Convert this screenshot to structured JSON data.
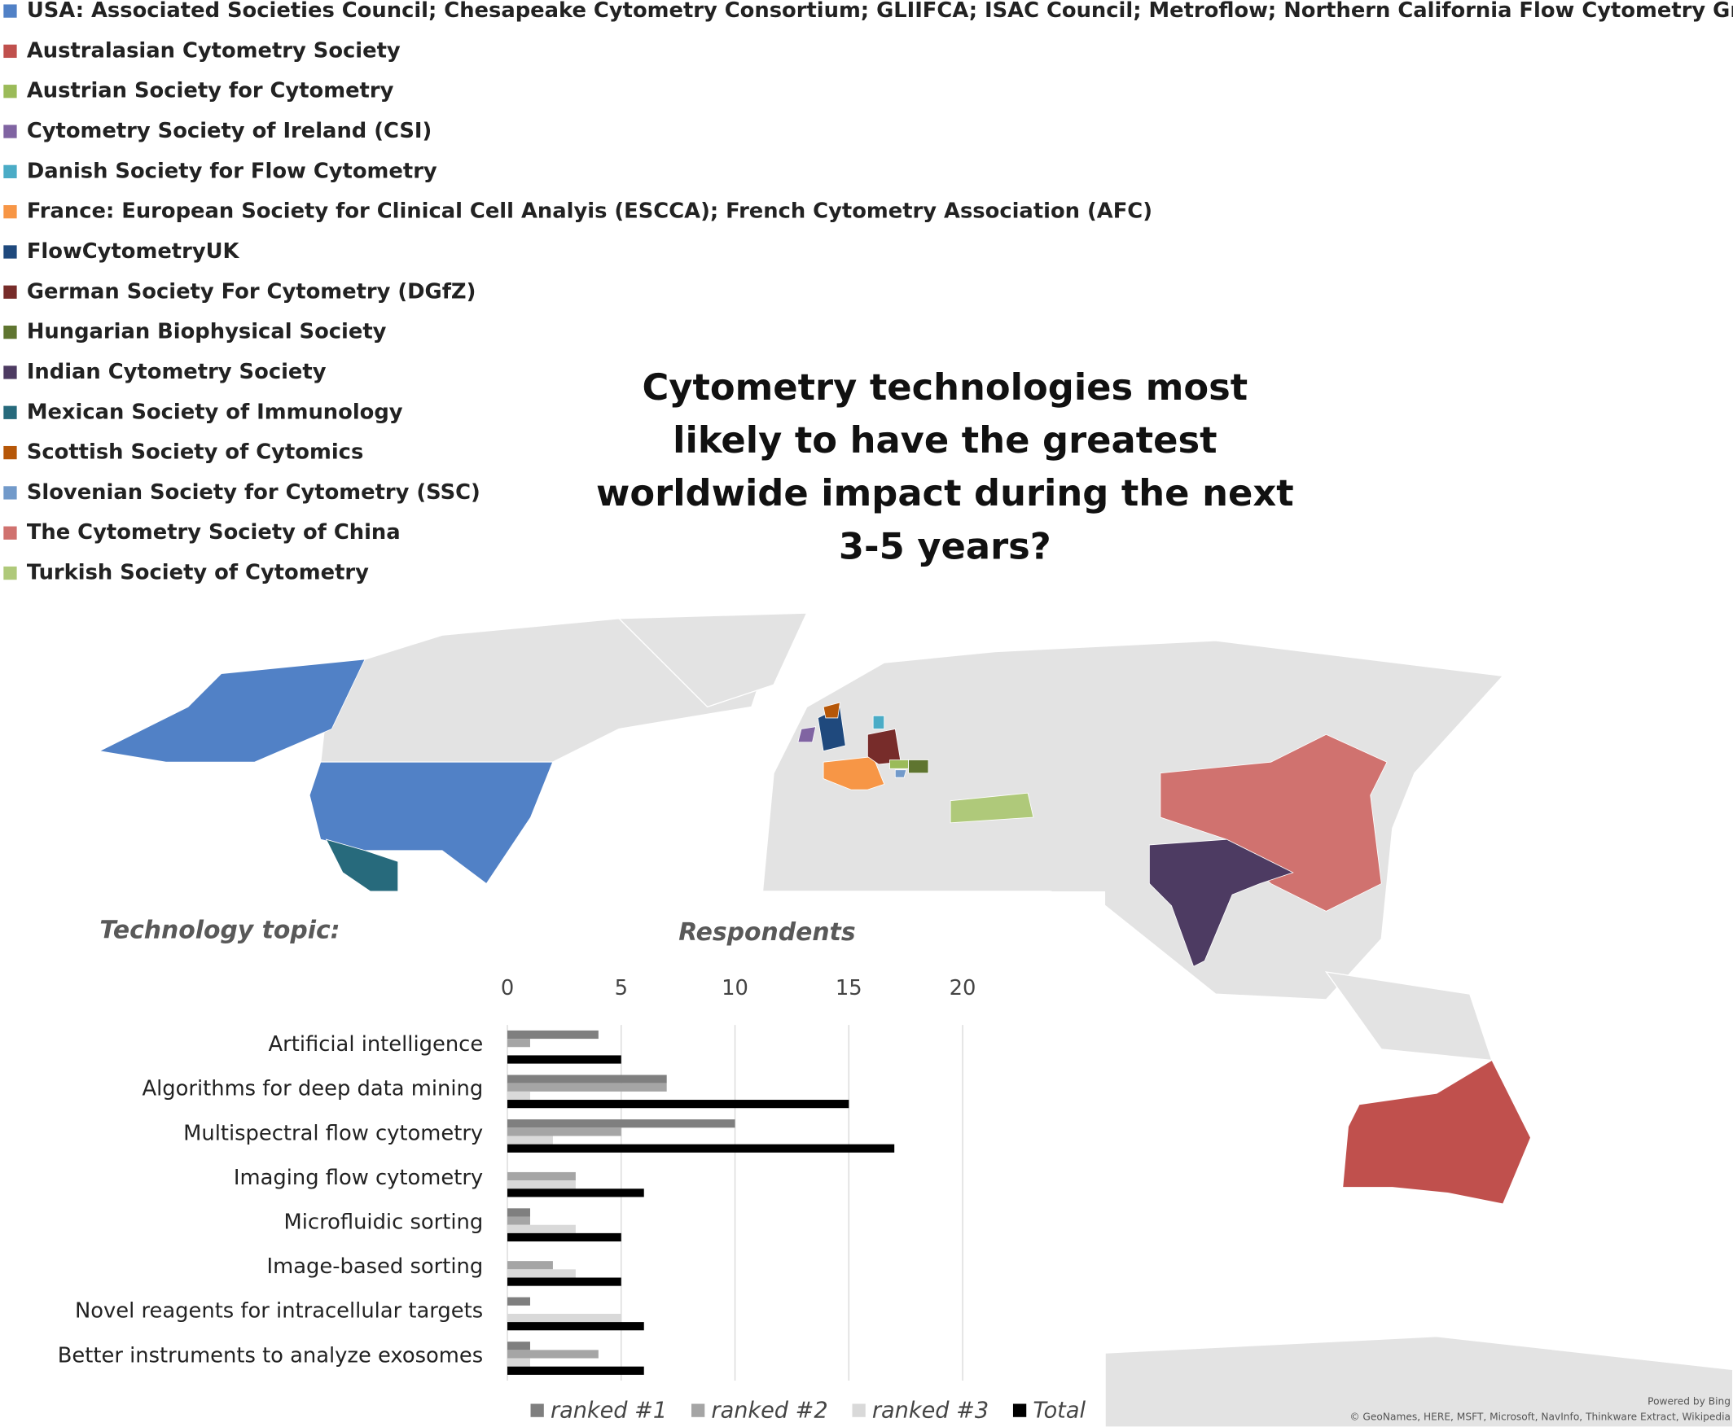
{
  "map_legend": {
    "items": [
      {
        "name": "USA: Associated Societies Council; Chesapeake Cytometry Consortium; GLIIFCA; ISAC Council; Metroflow; Northern California Flow Cytometry Group",
        "color": "#5181c6"
      },
      {
        "name": "Australasian Cytometry Society",
        "color": "#c0504d"
      },
      {
        "name": "Austrian Society for Cytometry",
        "color": "#9bbb59"
      },
      {
        "name": "Cytometry Society of Ireland (CSI)",
        "color": "#8064a2"
      },
      {
        "name": "Danish Society for Flow Cytometry",
        "color": "#4bacc6"
      },
      {
        "name": "France: European Society for Clinical Cell Analyis (ESCCA); French Cytometry Association (AFC)",
        "color": "#f79646"
      },
      {
        "name": "FlowCytometryUK",
        "color": "#1f497d"
      },
      {
        "name": "German Society For Cytometry (DGfZ)",
        "color": "#772c2a"
      },
      {
        "name": "Hungarian Biophysical Society",
        "color": "#5f7530"
      },
      {
        "name": "Indian Cytometry Society",
        "color": "#4d3b62"
      },
      {
        "name": "Mexican Society of Immunology",
        "color": "#276a7c"
      },
      {
        "name": "Scottish Society of Cytomics",
        "color": "#b65708"
      },
      {
        "name": "Slovenian Society for Cytometry (SSC)",
        "color": "#729aca"
      },
      {
        "name": "The Cytometry Society of China",
        "color": "#d0726f"
      },
      {
        "name": "Turkish Society of Cytometry",
        "color": "#afc97a"
      }
    ]
  },
  "map_attribution": {
    "powered": "Powered by Bing",
    "sources": "© GeoNames, HERE, MSFT, Microsoft, NavInfo, Thinkware Extract, Wikipedia"
  },
  "chart_data": {
    "type": "bar",
    "orientation": "horizontal",
    "title": "Cytometry technologies most likely to have the greatest worldwide impact during the next 3-5 years?",
    "category_axis_label": "Technology topic:",
    "x_label": "Respondents",
    "categories": [
      "Artificial intelligence",
      "Algorithms for deep data mining",
      "Multispectral flow cytometry",
      "Imaging flow cytometry",
      "Microfluidic sorting",
      "Image-based sorting",
      "Novel reagents for intracellular targets",
      "Better instruments to analyze exosomes"
    ],
    "series": [
      {
        "name": "ranked #1",
        "color": "#7f7f7f",
        "values": [
          4,
          7,
          10,
          0,
          1,
          0,
          1,
          1
        ]
      },
      {
        "name": "ranked #2",
        "color": "#a5a5a5",
        "values": [
          1,
          7,
          5,
          3,
          1,
          2,
          0,
          4
        ]
      },
      {
        "name": "ranked #3",
        "color": "#d9d9d9",
        "values": [
          0,
          1,
          2,
          3,
          3,
          3,
          5,
          1
        ]
      },
      {
        "name": "Total",
        "color": "#000000",
        "values": [
          5,
          15,
          17,
          6,
          5,
          5,
          6,
          6
        ]
      }
    ],
    "xlim": [
      0,
      20
    ],
    "xticks": [
      0,
      5,
      10,
      15,
      20
    ],
    "grid": true,
    "legend": "bottom"
  }
}
